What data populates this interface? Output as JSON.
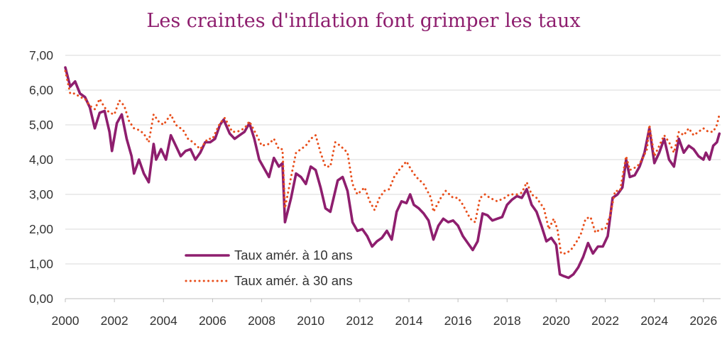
{
  "chart_data": {
    "type": "line",
    "title": "Les craintes d'inflation font grimper les taux",
    "xlabel": "",
    "ylabel": "",
    "xlim": [
      2000,
      2026.7
    ],
    "ylim": [
      0,
      7
    ],
    "x_tick_labels": [
      "2000",
      "2002",
      "2004",
      "2006",
      "2008",
      "2010",
      "2012",
      "2014",
      "2016",
      "2018",
      "2020",
      "2022",
      "2024",
      "2026"
    ],
    "y_tick_labels": [
      "0,00",
      "1,00",
      "2,00",
      "3,00",
      "4,00",
      "5,00",
      "6,00",
      "7,00"
    ],
    "grid": "horizontal",
    "legend_position": "bottom-left inside",
    "series": [
      {
        "name": "Taux amér. à 10 ans",
        "color": "#8e1e6e",
        "style": "solid",
        "points": [
          [
            2000.0,
            6.65
          ],
          [
            2000.2,
            6.1
          ],
          [
            2000.4,
            6.25
          ],
          [
            2000.6,
            5.9
          ],
          [
            2000.8,
            5.8
          ],
          [
            2001.0,
            5.5
          ],
          [
            2001.2,
            4.9
          ],
          [
            2001.4,
            5.35
          ],
          [
            2001.6,
            5.4
          ],
          [
            2001.8,
            4.8
          ],
          [
            2001.9,
            4.25
          ],
          [
            2002.1,
            5.05
          ],
          [
            2002.3,
            5.3
          ],
          [
            2002.5,
            4.6
          ],
          [
            2002.7,
            4.1
          ],
          [
            2002.8,
            3.6
          ],
          [
            2003.0,
            4.0
          ],
          [
            2003.2,
            3.6
          ],
          [
            2003.4,
            3.35
          ],
          [
            2003.6,
            4.45
          ],
          [
            2003.7,
            4.0
          ],
          [
            2003.9,
            4.3
          ],
          [
            2004.1,
            4.0
          ],
          [
            2004.3,
            4.7
          ],
          [
            2004.5,
            4.4
          ],
          [
            2004.7,
            4.1
          ],
          [
            2004.9,
            4.25
          ],
          [
            2005.1,
            4.3
          ],
          [
            2005.3,
            4.0
          ],
          [
            2005.5,
            4.2
          ],
          [
            2005.7,
            4.5
          ],
          [
            2005.9,
            4.5
          ],
          [
            2006.1,
            4.6
          ],
          [
            2006.3,
            5.0
          ],
          [
            2006.45,
            5.15
          ],
          [
            2006.7,
            4.75
          ],
          [
            2006.9,
            4.6
          ],
          [
            2007.1,
            4.7
          ],
          [
            2007.3,
            4.8
          ],
          [
            2007.5,
            5.05
          ],
          [
            2007.7,
            4.6
          ],
          [
            2007.9,
            4.0
          ],
          [
            2008.1,
            3.75
          ],
          [
            2008.3,
            3.5
          ],
          [
            2008.5,
            4.05
          ],
          [
            2008.7,
            3.8
          ],
          [
            2008.85,
            3.9
          ],
          [
            2008.95,
            2.2
          ],
          [
            2009.2,
            2.9
          ],
          [
            2009.4,
            3.6
          ],
          [
            2009.6,
            3.5
          ],
          [
            2009.8,
            3.3
          ],
          [
            2010.0,
            3.8
          ],
          [
            2010.2,
            3.7
          ],
          [
            2010.4,
            3.2
          ],
          [
            2010.6,
            2.6
          ],
          [
            2010.8,
            2.5
          ],
          [
            2011.1,
            3.4
          ],
          [
            2011.3,
            3.5
          ],
          [
            2011.5,
            3.1
          ],
          [
            2011.7,
            2.2
          ],
          [
            2011.9,
            1.95
          ],
          [
            2012.1,
            2.0
          ],
          [
            2012.3,
            1.8
          ],
          [
            2012.5,
            1.5
          ],
          [
            2012.7,
            1.65
          ],
          [
            2012.9,
            1.75
          ],
          [
            2013.1,
            1.95
          ],
          [
            2013.3,
            1.7
          ],
          [
            2013.5,
            2.5
          ],
          [
            2013.7,
            2.8
          ],
          [
            2013.9,
            2.75
          ],
          [
            2014.05,
            3.0
          ],
          [
            2014.2,
            2.7
          ],
          [
            2014.4,
            2.6
          ],
          [
            2014.6,
            2.45
          ],
          [
            2014.8,
            2.25
          ],
          [
            2015.0,
            1.7
          ],
          [
            2015.2,
            2.1
          ],
          [
            2015.4,
            2.3
          ],
          [
            2015.6,
            2.2
          ],
          [
            2015.8,
            2.25
          ],
          [
            2016.0,
            2.1
          ],
          [
            2016.2,
            1.8
          ],
          [
            2016.4,
            1.6
          ],
          [
            2016.6,
            1.4
          ],
          [
            2016.8,
            1.65
          ],
          [
            2017.0,
            2.45
          ],
          [
            2017.2,
            2.4
          ],
          [
            2017.4,
            2.25
          ],
          [
            2017.6,
            2.3
          ],
          [
            2017.8,
            2.35
          ],
          [
            2018.0,
            2.7
          ],
          [
            2018.2,
            2.85
          ],
          [
            2018.4,
            2.95
          ],
          [
            2018.6,
            2.9
          ],
          [
            2018.8,
            3.15
          ],
          [
            2019.0,
            2.7
          ],
          [
            2019.2,
            2.5
          ],
          [
            2019.4,
            2.1
          ],
          [
            2019.6,
            1.65
          ],
          [
            2019.8,
            1.75
          ],
          [
            2020.0,
            1.55
          ],
          [
            2020.15,
            0.7
          ],
          [
            2020.3,
            0.65
          ],
          [
            2020.5,
            0.6
          ],
          [
            2020.7,
            0.7
          ],
          [
            2020.9,
            0.9
          ],
          [
            2021.1,
            1.2
          ],
          [
            2021.3,
            1.6
          ],
          [
            2021.5,
            1.3
          ],
          [
            2021.7,
            1.5
          ],
          [
            2021.9,
            1.5
          ],
          [
            2022.1,
            1.8
          ],
          [
            2022.3,
            2.9
          ],
          [
            2022.5,
            3.0
          ],
          [
            2022.7,
            3.2
          ],
          [
            2022.85,
            4.0
          ],
          [
            2023.0,
            3.5
          ],
          [
            2023.2,
            3.55
          ],
          [
            2023.4,
            3.8
          ],
          [
            2023.6,
            4.2
          ],
          [
            2023.8,
            4.9
          ],
          [
            2024.0,
            3.9
          ],
          [
            2024.2,
            4.2
          ],
          [
            2024.4,
            4.6
          ],
          [
            2024.6,
            4.0
          ],
          [
            2024.8,
            3.8
          ],
          [
            2025.0,
            4.6
          ],
          [
            2025.2,
            4.2
          ],
          [
            2025.4,
            4.4
          ],
          [
            2025.6,
            4.3
          ],
          [
            2025.8,
            4.1
          ],
          [
            2026.0,
            4.0
          ],
          [
            2026.1,
            4.2
          ],
          [
            2026.25,
            4.0
          ],
          [
            2026.4,
            4.4
          ],
          [
            2026.55,
            4.5
          ],
          [
            2026.65,
            4.75
          ]
        ]
      },
      {
        "name": "Taux amér. à 30 ans",
        "color": "#e84e1b",
        "style": "dotted",
        "points": [
          [
            2000.0,
            6.55
          ],
          [
            2000.2,
            5.9
          ],
          [
            2000.4,
            5.9
          ],
          [
            2000.6,
            5.8
          ],
          [
            2000.8,
            5.75
          ],
          [
            2001.0,
            5.55
          ],
          [
            2001.2,
            5.45
          ],
          [
            2001.4,
            5.75
          ],
          [
            2001.6,
            5.5
          ],
          [
            2001.8,
            5.35
          ],
          [
            2002.0,
            5.3
          ],
          [
            2002.2,
            5.7
          ],
          [
            2002.4,
            5.55
          ],
          [
            2002.6,
            5.1
          ],
          [
            2002.8,
            4.9
          ],
          [
            2003.0,
            4.85
          ],
          [
            2003.2,
            4.75
          ],
          [
            2003.4,
            4.5
          ],
          [
            2003.6,
            5.3
          ],
          [
            2003.8,
            5.1
          ],
          [
            2004.0,
            5.0
          ],
          [
            2004.3,
            5.3
          ],
          [
            2004.5,
            5.0
          ],
          [
            2004.8,
            4.85
          ],
          [
            2005.0,
            4.6
          ],
          [
            2005.2,
            4.5
          ],
          [
            2005.5,
            4.3
          ],
          [
            2005.8,
            4.6
          ],
          [
            2006.0,
            4.6
          ],
          [
            2006.3,
            5.05
          ],
          [
            2006.5,
            5.2
          ],
          [
            2006.8,
            4.8
          ],
          [
            2007.0,
            4.8
          ],
          [
            2007.3,
            4.9
          ],
          [
            2007.5,
            5.1
          ],
          [
            2007.8,
            4.7
          ],
          [
            2008.0,
            4.4
          ],
          [
            2008.3,
            4.45
          ],
          [
            2008.5,
            4.6
          ],
          [
            2008.7,
            4.3
          ],
          [
            2008.85,
            4.3
          ],
          [
            2008.95,
            2.6
          ],
          [
            2009.2,
            3.5
          ],
          [
            2009.4,
            4.2
          ],
          [
            2009.6,
            4.3
          ],
          [
            2009.8,
            4.4
          ],
          [
            2010.0,
            4.6
          ],
          [
            2010.2,
            4.7
          ],
          [
            2010.4,
            4.2
          ],
          [
            2010.6,
            3.8
          ],
          [
            2010.8,
            3.8
          ],
          [
            2011.0,
            4.5
          ],
          [
            2011.2,
            4.4
          ],
          [
            2011.5,
            4.2
          ],
          [
            2011.7,
            3.3
          ],
          [
            2011.9,
            3.0
          ],
          [
            2012.2,
            3.2
          ],
          [
            2012.4,
            2.8
          ],
          [
            2012.6,
            2.55
          ],
          [
            2012.8,
            2.9
          ],
          [
            2013.0,
            3.1
          ],
          [
            2013.2,
            3.15
          ],
          [
            2013.4,
            3.5
          ],
          [
            2013.6,
            3.7
          ],
          [
            2013.9,
            3.95
          ],
          [
            2014.1,
            3.7
          ],
          [
            2014.3,
            3.5
          ],
          [
            2014.6,
            3.3
          ],
          [
            2014.9,
            2.9
          ],
          [
            2015.0,
            2.5
          ],
          [
            2015.3,
            2.9
          ],
          [
            2015.5,
            3.1
          ],
          [
            2015.8,
            2.9
          ],
          [
            2016.0,
            2.9
          ],
          [
            2016.2,
            2.7
          ],
          [
            2016.5,
            2.3
          ],
          [
            2016.7,
            2.2
          ],
          [
            2016.9,
            2.9
          ],
          [
            2017.1,
            3.0
          ],
          [
            2017.3,
            2.9
          ],
          [
            2017.6,
            2.8
          ],
          [
            2017.9,
            2.9
          ],
          [
            2018.1,
            3.0
          ],
          [
            2018.4,
            3.0
          ],
          [
            2018.6,
            3.05
          ],
          [
            2018.8,
            3.35
          ],
          [
            2019.0,
            3.0
          ],
          [
            2019.2,
            2.9
          ],
          [
            2019.5,
            2.6
          ],
          [
            2019.7,
            2.0
          ],
          [
            2019.9,
            2.3
          ],
          [
            2020.05,
            2.0
          ],
          [
            2020.2,
            1.3
          ],
          [
            2020.4,
            1.3
          ],
          [
            2020.6,
            1.4
          ],
          [
            2020.8,
            1.6
          ],
          [
            2021.0,
            1.85
          ],
          [
            2021.2,
            2.3
          ],
          [
            2021.4,
            2.35
          ],
          [
            2021.6,
            1.9
          ],
          [
            2021.8,
            2.0
          ],
          [
            2022.0,
            2.0
          ],
          [
            2022.2,
            2.4
          ],
          [
            2022.4,
            3.1
          ],
          [
            2022.6,
            3.1
          ],
          [
            2022.85,
            4.1
          ],
          [
            2023.0,
            3.7
          ],
          [
            2023.3,
            3.8
          ],
          [
            2023.5,
            4.0
          ],
          [
            2023.7,
            4.3
          ],
          [
            2023.8,
            5.0
          ],
          [
            2024.0,
            4.1
          ],
          [
            2024.2,
            4.4
          ],
          [
            2024.4,
            4.7
          ],
          [
            2024.6,
            4.5
          ],
          [
            2024.8,
            4.2
          ],
          [
            2025.0,
            4.8
          ],
          [
            2025.2,
            4.7
          ],
          [
            2025.4,
            4.9
          ],
          [
            2025.6,
            4.7
          ],
          [
            2025.8,
            4.8
          ],
          [
            2026.0,
            4.9
          ],
          [
            2026.2,
            4.8
          ],
          [
            2026.4,
            4.8
          ],
          [
            2026.55,
            5.0
          ],
          [
            2026.65,
            5.3
          ]
        ]
      }
    ]
  }
}
